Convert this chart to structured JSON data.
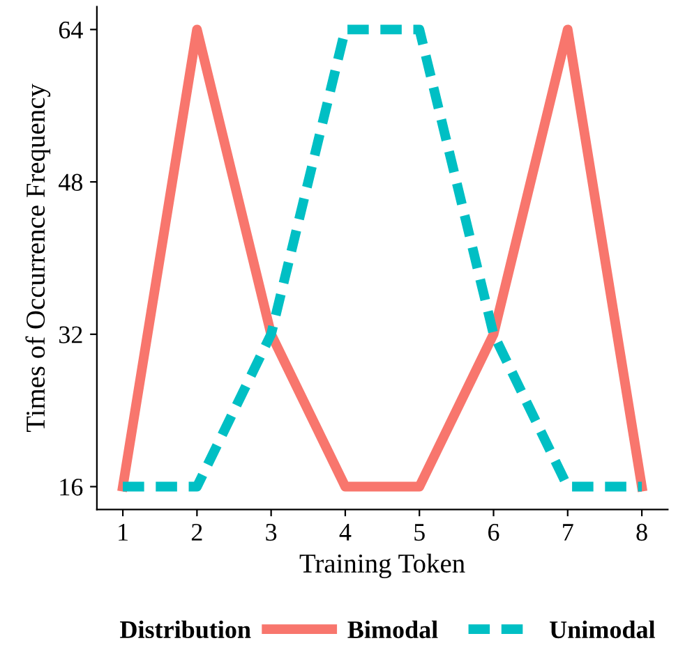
{
  "chart_data": {
    "type": "line",
    "xlabel": "Training Token",
    "ylabel": "Times of Occurrence Frequency",
    "legend_title": "Distribution",
    "legend": "bottom",
    "grid": false,
    "marker": "none",
    "x": [
      1,
      2,
      3,
      4,
      5,
      6,
      7,
      8
    ],
    "xlim": [
      0.65,
      8.35
    ],
    "xticks": [
      1,
      2,
      3,
      4,
      5,
      6,
      7,
      8
    ],
    "ylim": [
      13.6,
      66.4
    ],
    "yticks": [
      16,
      32,
      48,
      64
    ],
    "series": [
      {
        "name": "Bimodal",
        "color": "#f8766d",
        "line_style": "solid",
        "values": [
          16,
          64,
          32,
          16,
          16,
          32,
          64,
          16
        ]
      },
      {
        "name": "Unimodal",
        "color": "#00bfc4",
        "line_style": "dashed",
        "values": [
          16,
          16,
          32,
          64,
          64,
          32,
          16,
          16
        ]
      }
    ]
  }
}
